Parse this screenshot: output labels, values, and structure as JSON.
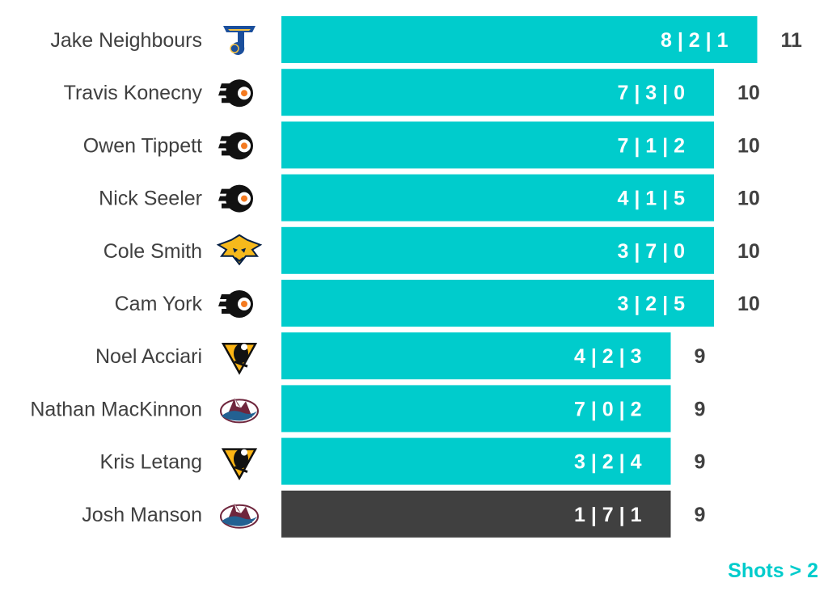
{
  "chart_data": {
    "type": "bar",
    "orientation": "horizontal",
    "categories": [
      "Jake Neighbours",
      "Travis Konecny",
      "Owen Tippett",
      "Nick Seeler",
      "Cole Smith",
      "Cam York",
      "Noel Acciari",
      "Nathan MacKinnon",
      "Kris Letang",
      "Josh Manson"
    ],
    "teams": [
      "blues",
      "flyers",
      "flyers",
      "flyers",
      "predators",
      "flyers",
      "penguins",
      "avalanche",
      "penguins",
      "avalanche"
    ],
    "values": [
      11,
      10,
      10,
      10,
      10,
      10,
      9,
      9,
      9,
      9
    ],
    "breakdown": [
      "8 | 2 | 1",
      "7 | 3 | 0",
      "7 | 1 | 2",
      "4 | 1 | 5",
      "3 | 7 | 0",
      "3 | 2 | 5",
      "4 | 2 | 3",
      "7 | 0 | 2",
      "3 | 2 | 4",
      "1 | 7 | 1"
    ],
    "highlight_index": 9,
    "xlim": [
      0,
      11
    ],
    "grid": false,
    "legend": "none",
    "annotation": "Shots > 2"
  },
  "colors": {
    "bar": "#00cccc",
    "highlight": "#404040",
    "name_text": "#404040",
    "total_text": "#404040",
    "annotation": "#00cccc"
  }
}
